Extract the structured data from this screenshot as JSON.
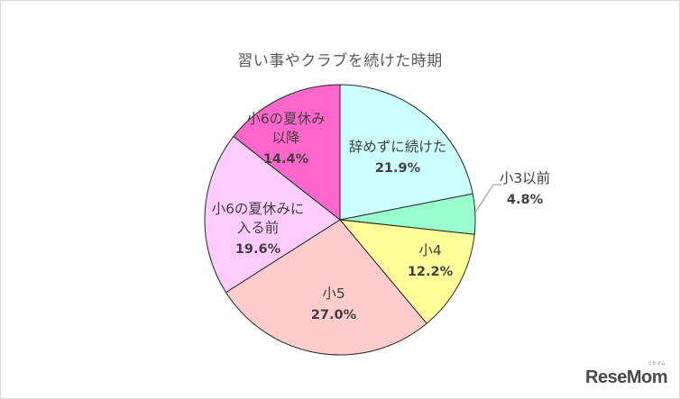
{
  "chart_data": {
    "type": "pie",
    "title": "習い事やクラブを続けた時期",
    "start_angle": "12 o'clock, clockwise",
    "slices": [
      {
        "label": "辞めずに続けた",
        "value": 21.9,
        "display": "21.9%",
        "color": "#ccffff",
        "label_lines": [
          "辞めずに続けた"
        ]
      },
      {
        "label": "小3以前",
        "value": 4.8,
        "display": "4.8%",
        "color": "#99ffcc",
        "label_lines": [
          "小3以前"
        ],
        "leader_line": true
      },
      {
        "label": "小4",
        "value": 12.2,
        "display": "12.2%",
        "color": "#ffff99",
        "label_lines": [
          "小4"
        ]
      },
      {
        "label": "小5",
        "value": 27.0,
        "display": "27.0%",
        "color": "#ffcccc",
        "label_lines": [
          "小5"
        ]
      },
      {
        "label": "小6の夏休みに入る前",
        "value": 19.6,
        "display": "19.6%",
        "color": "#ffccff",
        "label_lines": [
          "小6の夏休みに",
          "入る前"
        ]
      },
      {
        "label": "小6の夏休み以降",
        "value": 14.4,
        "display": "14.4%",
        "color": "#ff66cc",
        "label_lines": [
          "小6の夏休み",
          "以降"
        ]
      }
    ],
    "legend": "none (data labels on slices)"
  },
  "watermark": {
    "text": "ReseMom",
    "sub": "リセマム"
  }
}
